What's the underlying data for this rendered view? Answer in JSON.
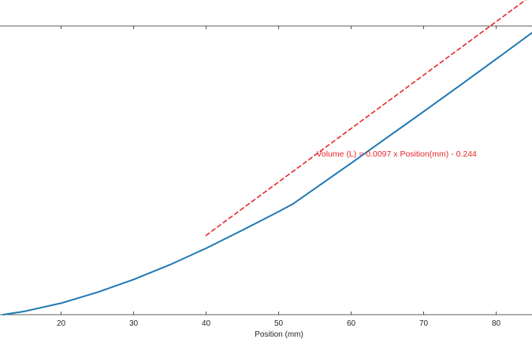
{
  "chart_data": {
    "type": "line",
    "xlabel": "Position (mm)",
    "ylabel": "",
    "xlim": [
      12,
      85
    ],
    "ylim": [
      0,
      0.6
    ],
    "x_ticks": [
      20,
      30,
      40,
      50,
      60,
      70,
      80
    ],
    "grid": false,
    "colors": {
      "measured": "#1f77b4",
      "fit": "#e8262a",
      "axis": "#262626"
    },
    "series": [
      {
        "style": "solid",
        "x": [
          12,
          15,
          20,
          25,
          30,
          35,
          40,
          45,
          50,
          52,
          55,
          60,
          65,
          70,
          75,
          80,
          85
        ],
        "y": [
          0.0,
          0.0062,
          0.0209,
          0.0406,
          0.0639,
          0.0905,
          0.1206,
          0.1534,
          0.1872,
          0.2013,
          0.229,
          0.2752,
          0.322,
          0.3688,
          0.4162,
          0.4641,
          0.5125
        ]
      },
      {
        "style": "dashed",
        "x": [
          40,
          85
        ],
        "y": [
          0.144,
          0.5805
        ]
      }
    ],
    "annotations": [
      {
        "text": "Volume (L) = 0.0097 x Position(mm) - 0.244",
        "x": 55,
        "y": 0.287
      }
    ]
  }
}
